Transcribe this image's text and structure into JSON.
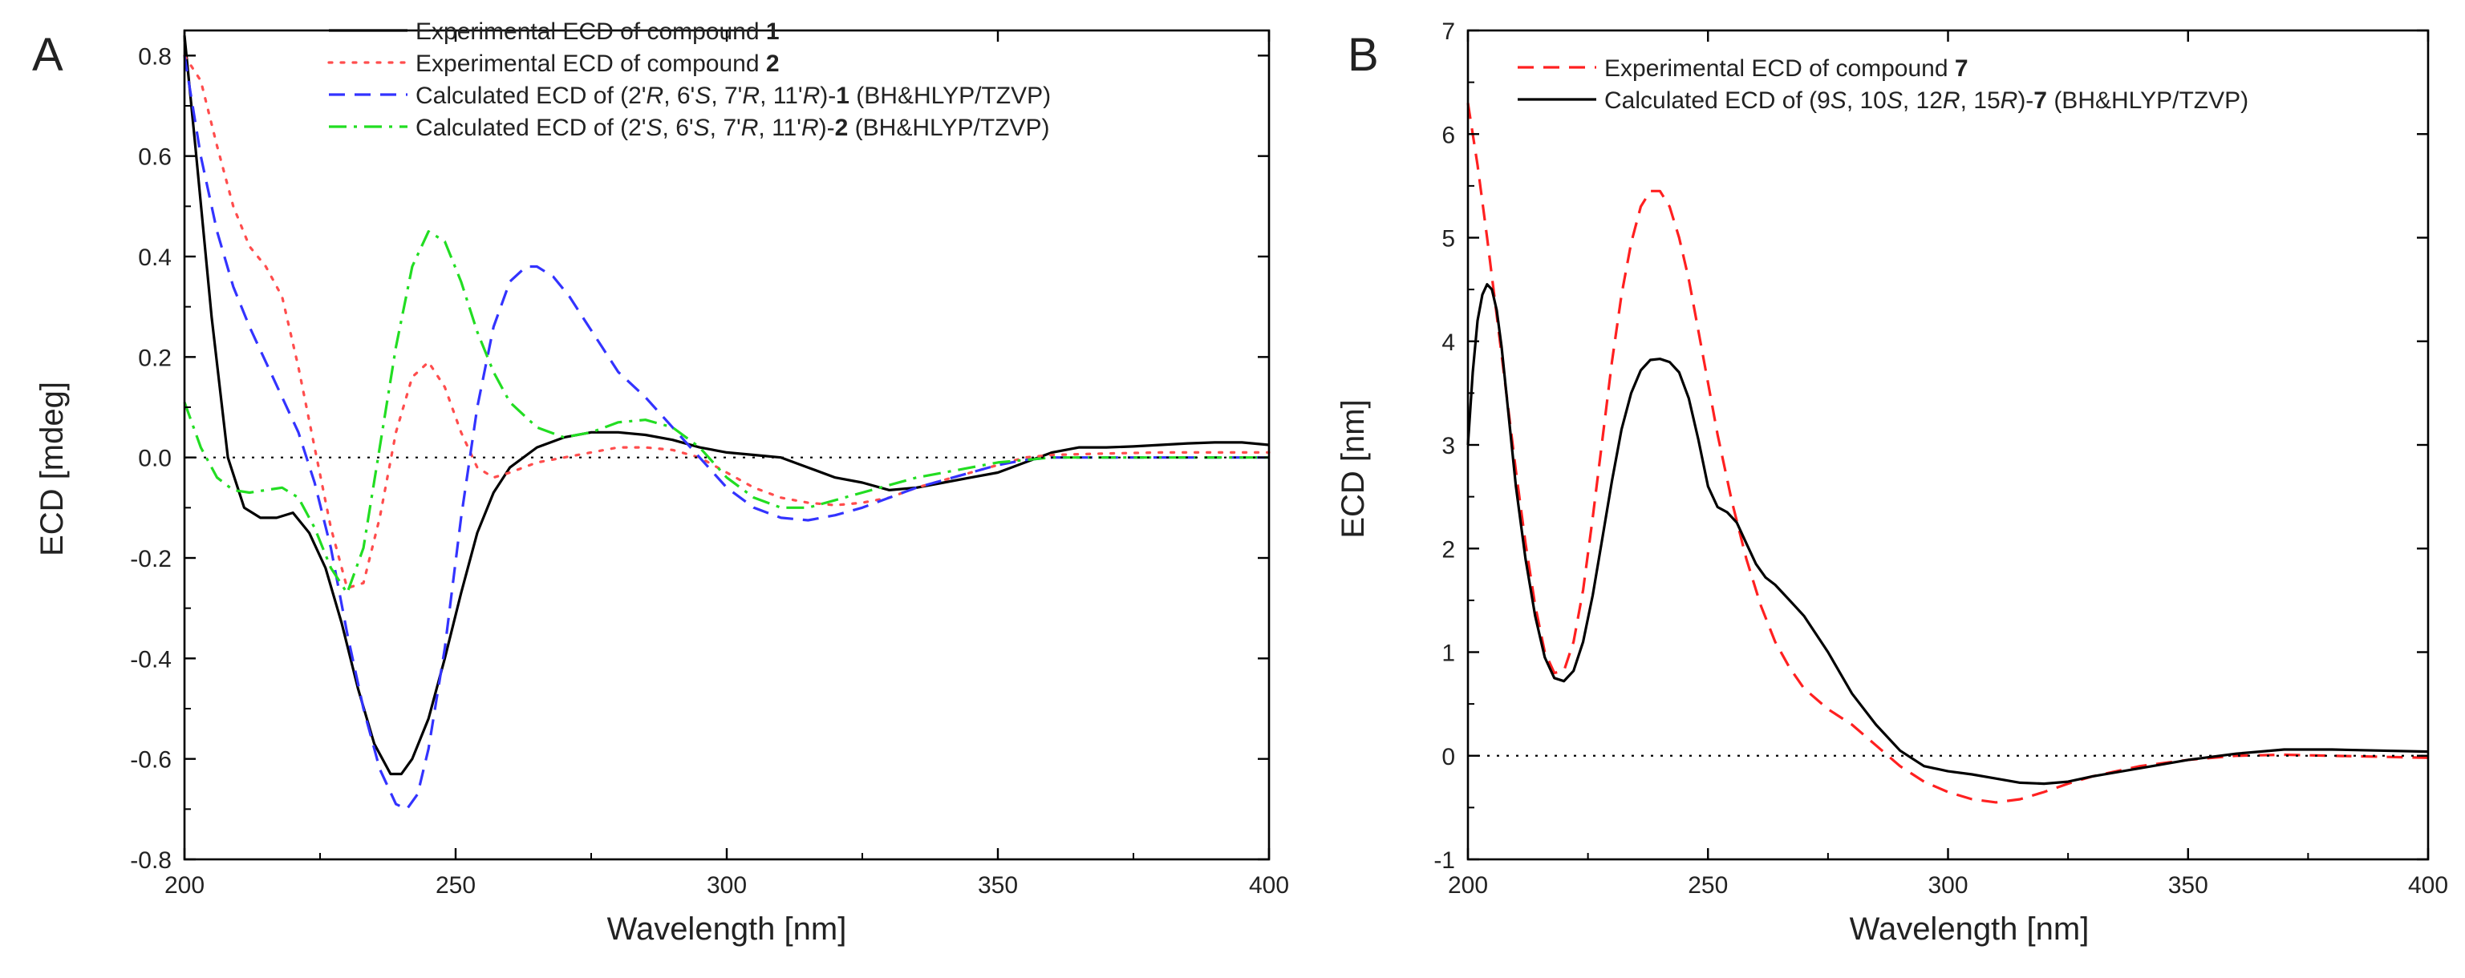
{
  "chart_data": [
    {
      "type": "line",
      "panel_label": "A",
      "xlabel": "Wavelength [nm]",
      "ylabel": "ECD [mdeg]",
      "xlim": [
        200,
        400
      ],
      "ylim": [
        -0.8,
        0.85
      ],
      "xticks": [
        200,
        250,
        300,
        350,
        400
      ],
      "xtick_labels": [
        "200",
        "250",
        "300",
        "350",
        "400"
      ],
      "yticks": [
        -0.8,
        -0.6,
        -0.4,
        -0.2,
        0.0,
        0.2,
        0.4,
        0.6,
        0.8
      ],
      "ytick_labels": [
        "-0.8",
        "-0.6",
        "-0.4",
        "-0.2",
        "0.0",
        "0.2",
        "0.4",
        "0.6",
        "0.8"
      ],
      "zero_line": true,
      "legend_position": "top-right",
      "series": [
        {
          "name": "Experimental ECD of compound 1",
          "legend_parts": [
            {
              "text": "Experimental ECD of compound ",
              "style": "normal"
            },
            {
              "text": "1",
              "style": "bold"
            }
          ],
          "color": "#000000",
          "dash": "solid",
          "x": [
            200,
            202,
            205,
            208,
            211,
            214,
            217,
            220,
            223,
            226,
            229,
            232,
            235,
            238,
            240,
            242,
            245,
            248,
            251,
            254,
            257,
            260,
            265,
            270,
            275,
            280,
            285,
            290,
            295,
            300,
            305,
            310,
            315,
            320,
            325,
            330,
            335,
            340,
            345,
            350,
            355,
            360,
            365,
            370,
            375,
            380,
            385,
            390,
            395,
            400
          ],
          "values": [
            0.84,
            0.62,
            0.28,
            0.0,
            -0.1,
            -0.12,
            -0.12,
            -0.11,
            -0.15,
            -0.22,
            -0.33,
            -0.46,
            -0.57,
            -0.63,
            -0.63,
            -0.6,
            -0.52,
            -0.4,
            -0.27,
            -0.15,
            -0.07,
            -0.02,
            0.02,
            0.04,
            0.05,
            0.05,
            0.045,
            0.035,
            0.02,
            0.01,
            0.005,
            0.0,
            -0.02,
            -0.04,
            -0.05,
            -0.065,
            -0.06,
            -0.05,
            -0.04,
            -0.03,
            -0.01,
            0.01,
            0.02,
            0.02,
            0.022,
            0.025,
            0.028,
            0.03,
            0.03,
            0.025
          ]
        },
        {
          "name": "Experimental ECD of compound 2",
          "legend_parts": [
            {
              "text": "Experimental ECD of compound ",
              "style": "normal"
            },
            {
              "text": "2",
              "style": "bold"
            }
          ],
          "color": "#ff4d4d",
          "dash": "dotted",
          "x": [
            200,
            203,
            206,
            209,
            212,
            215,
            218,
            221,
            224,
            227,
            230,
            233,
            236,
            239,
            242,
            245,
            248,
            251,
            254,
            257,
            260,
            265,
            270,
            275,
            280,
            285,
            290,
            295,
            300,
            305,
            310,
            315,
            320,
            325,
            330,
            335,
            340,
            345,
            350,
            355,
            360,
            370,
            380,
            390,
            400
          ],
          "values": [
            0.8,
            0.75,
            0.62,
            0.5,
            0.42,
            0.38,
            0.32,
            0.18,
            0.02,
            -0.14,
            -0.26,
            -0.25,
            -0.12,
            0.05,
            0.16,
            0.19,
            0.14,
            0.05,
            -0.02,
            -0.04,
            -0.03,
            -0.01,
            0.0,
            0.01,
            0.02,
            0.02,
            0.015,
            0.0,
            -0.03,
            -0.06,
            -0.08,
            -0.09,
            -0.095,
            -0.09,
            -0.08,
            -0.06,
            -0.045,
            -0.03,
            -0.015,
            0.0,
            0.005,
            0.008,
            0.01,
            0.01,
            0.01
          ]
        },
        {
          "name": "Calculated ECD of (2'R, 6'S, 7'R, 11'R)-1 (BH&HLYP/TZVP)",
          "legend_parts": [
            {
              "text": "Calculated ECD of (2'",
              "style": "normal"
            },
            {
              "text": "R",
              "style": "italic"
            },
            {
              "text": ", 6'",
              "style": "normal"
            },
            {
              "text": "S",
              "style": "italic"
            },
            {
              "text": ", 7'",
              "style": "normal"
            },
            {
              "text": "R",
              "style": "italic"
            },
            {
              "text": ", 11'",
              "style": "normal"
            },
            {
              "text": "R",
              "style": "italic"
            },
            {
              "text": ")-",
              "style": "normal"
            },
            {
              "text": "1",
              "style": "bold"
            },
            {
              "text": " (BH&HLYP/TZVP)",
              "style": "normal"
            }
          ],
          "color": "#3333ff",
          "dash": "dashed",
          "x": [
            200,
            203,
            206,
            209,
            212,
            215,
            218,
            221,
            224,
            227,
            230,
            233,
            236,
            239,
            241,
            243,
            245,
            248,
            251,
            254,
            257,
            260,
            263,
            265,
            268,
            271,
            274,
            277,
            280,
            285,
            290,
            295,
            300,
            305,
            310,
            315,
            320,
            325,
            330,
            335,
            340,
            345,
            350,
            355,
            360,
            370,
            380,
            390,
            400
          ],
          "values": [
            0.8,
            0.6,
            0.45,
            0.34,
            0.26,
            0.19,
            0.12,
            0.05,
            -0.05,
            -0.18,
            -0.35,
            -0.5,
            -0.62,
            -0.69,
            -0.7,
            -0.67,
            -0.58,
            -0.38,
            -0.12,
            0.1,
            0.26,
            0.35,
            0.38,
            0.38,
            0.36,
            0.32,
            0.27,
            0.22,
            0.17,
            0.12,
            0.06,
            0.0,
            -0.06,
            -0.1,
            -0.12,
            -0.125,
            -0.115,
            -0.1,
            -0.08,
            -0.06,
            -0.045,
            -0.03,
            -0.015,
            -0.005,
            0.0,
            0.0,
            0.0,
            0.0,
            0.0
          ]
        },
        {
          "name": "Calculated ECD of (2'S, 6'S, 7'R, 11'R)-2 (BH&HLYP/TZVP)",
          "legend_parts": [
            {
              "text": "Calculated ECD of (2'",
              "style": "normal"
            },
            {
              "text": "S",
              "style": "italic"
            },
            {
              "text": ", 6'",
              "style": "normal"
            },
            {
              "text": "S",
              "style": "italic"
            },
            {
              "text": ", 7'",
              "style": "normal"
            },
            {
              "text": "R",
              "style": "italic"
            },
            {
              "text": ", 11'",
              "style": "normal"
            },
            {
              "text": "R",
              "style": "italic"
            },
            {
              "text": ")-",
              "style": "normal"
            },
            {
              "text": "2",
              "style": "bold"
            },
            {
              "text": " (BH&HLYP/TZVP)",
              "style": "normal"
            }
          ],
          "color": "#22dd22",
          "dash": "dashdot",
          "x": [
            200,
            203,
            206,
            209,
            212,
            215,
            218,
            221,
            224,
            227,
            230,
            233,
            236,
            239,
            242,
            245,
            248,
            251,
            254,
            257,
            260,
            265,
            270,
            275,
            280,
            285,
            290,
            295,
            300,
            305,
            310,
            315,
            320,
            325,
            330,
            335,
            340,
            345,
            350,
            355,
            360,
            370,
            380,
            390,
            400
          ],
          "values": [
            0.11,
            0.02,
            -0.04,
            -0.065,
            -0.07,
            -0.065,
            -0.06,
            -0.08,
            -0.14,
            -0.22,
            -0.27,
            -0.18,
            0.02,
            0.22,
            0.38,
            0.45,
            0.43,
            0.35,
            0.25,
            0.17,
            0.11,
            0.06,
            0.04,
            0.05,
            0.07,
            0.075,
            0.06,
            0.02,
            -0.04,
            -0.08,
            -0.1,
            -0.1,
            -0.085,
            -0.07,
            -0.055,
            -0.04,
            -0.03,
            -0.02,
            -0.01,
            -0.005,
            0.0,
            0.0,
            0.0,
            0.0,
            0.0
          ]
        }
      ]
    },
    {
      "type": "line",
      "panel_label": "B",
      "xlabel": "Wavelength [nm]",
      "ylabel": "ECD [nm]",
      "xlim": [
        200,
        400
      ],
      "ylim": [
        -1,
        7
      ],
      "xticks": [
        200,
        250,
        300,
        350,
        400
      ],
      "xtick_labels": [
        "200",
        "250",
        "300",
        "350",
        "400"
      ],
      "yticks": [
        -1,
        0,
        1,
        2,
        3,
        4,
        5,
        6,
        7
      ],
      "ytick_labels": [
        "-1",
        "0",
        "1",
        "2",
        "3",
        "4",
        "5",
        "6",
        "7"
      ],
      "zero_line": true,
      "legend_position": "top-left",
      "series": [
        {
          "name": "Experimental ECD of compound 7",
          "legend_parts": [
            {
              "text": "Experimental ECD of compound ",
              "style": "normal"
            },
            {
              "text": "7",
              "style": "bold"
            }
          ],
          "color": "#ff2020",
          "dash": "dashed",
          "x": [
            200,
            202,
            204,
            206,
            208,
            210,
            212,
            214,
            216,
            218,
            220,
            222,
            224,
            226,
            228,
            230,
            232,
            234,
            236,
            238,
            240,
            242,
            244,
            246,
            248,
            250,
            252,
            255,
            258,
            261,
            264,
            267,
            270,
            275,
            280,
            285,
            290,
            295,
            300,
            305,
            310,
            315,
            320,
            325,
            330,
            340,
            350,
            360,
            370,
            380,
            390,
            400
          ],
          "values": [
            6.3,
            5.7,
            5.0,
            4.25,
            3.5,
            2.75,
            2.05,
            1.45,
            1.0,
            0.8,
            0.82,
            1.1,
            1.6,
            2.3,
            3.05,
            3.8,
            4.45,
            4.95,
            5.3,
            5.45,
            5.45,
            5.3,
            5.0,
            4.6,
            4.1,
            3.6,
            3.1,
            2.45,
            1.9,
            1.45,
            1.1,
            0.85,
            0.65,
            0.45,
            0.3,
            0.1,
            -0.1,
            -0.25,
            -0.35,
            -0.42,
            -0.45,
            -0.42,
            -0.35,
            -0.27,
            -0.2,
            -0.1,
            -0.04,
            0.0,
            0.01,
            0.0,
            -0.01,
            -0.02
          ]
        },
        {
          "name": "Calculated ECD of (9S, 10S, 12R, 15R)-7 (BH&HLYP/TZVP)",
          "legend_parts": [
            {
              "text": "Calculated ECD of (9",
              "style": "normal"
            },
            {
              "text": "S",
              "style": "italic"
            },
            {
              "text": ", 10",
              "style": "normal"
            },
            {
              "text": "S",
              "style": "italic"
            },
            {
              "text": ", 12",
              "style": "normal"
            },
            {
              "text": "R",
              "style": "italic"
            },
            {
              "text": ", 15",
              "style": "normal"
            },
            {
              "text": "R",
              "style": "italic"
            },
            {
              "text": ")-",
              "style": "normal"
            },
            {
              "text": "7",
              "style": "bold"
            },
            {
              "text": " (BH&HLYP/TZVP)",
              "style": "normal"
            }
          ],
          "color": "#000000",
          "dash": "solid",
          "x": [
            200,
            201,
            202,
            203,
            204,
            205,
            206,
            207,
            208,
            210,
            212,
            214,
            216,
            218,
            220,
            222,
            224,
            226,
            228,
            230,
            232,
            234,
            236,
            238,
            240,
            242,
            244,
            246,
            248,
            250,
            252,
            254,
            256,
            258,
            260,
            262,
            264,
            266,
            268,
            270,
            275,
            280,
            285,
            290,
            295,
            300,
            305,
            310,
            315,
            320,
            325,
            330,
            340,
            350,
            360,
            370,
            380,
            390,
            400
          ],
          "values": [
            3.0,
            3.7,
            4.2,
            4.45,
            4.55,
            4.5,
            4.3,
            3.95,
            3.5,
            2.6,
            1.9,
            1.35,
            0.95,
            0.75,
            0.72,
            0.82,
            1.1,
            1.55,
            2.1,
            2.65,
            3.15,
            3.5,
            3.72,
            3.82,
            3.83,
            3.8,
            3.7,
            3.45,
            3.05,
            2.6,
            2.4,
            2.35,
            2.25,
            2.05,
            1.85,
            1.72,
            1.65,
            1.55,
            1.45,
            1.35,
            1.0,
            0.6,
            0.3,
            0.05,
            -0.1,
            -0.15,
            -0.18,
            -0.22,
            -0.26,
            -0.27,
            -0.25,
            -0.2,
            -0.12,
            -0.04,
            0.02,
            0.06,
            0.06,
            0.05,
            0.04
          ]
        }
      ]
    }
  ]
}
